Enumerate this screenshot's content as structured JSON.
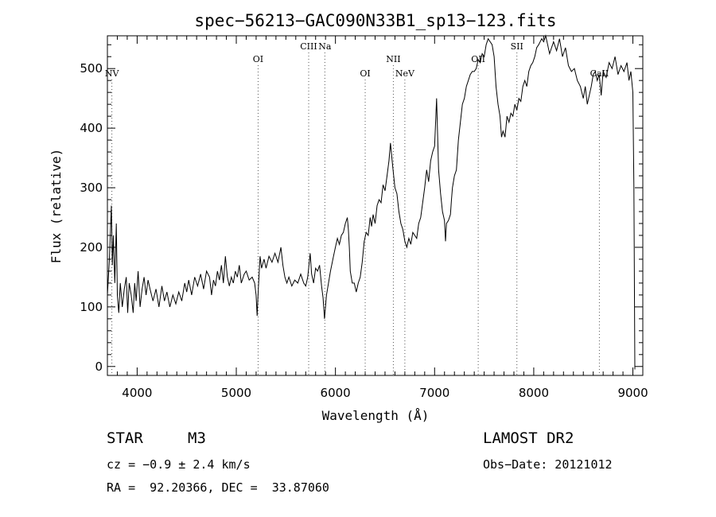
{
  "chart_data": {
    "type": "line",
    "title": "spec−56213−GAC090N33B1_sp13−123.fits",
    "xlabel": "Wavelength (Å)",
    "ylabel": "Flux (relative)",
    "xlim": [
      3700,
      9100
    ],
    "ylim": [
      -15,
      555
    ],
    "xticks": [
      4000,
      5000,
      6000,
      7000,
      8000,
      9000
    ],
    "yticks": [
      0,
      100,
      200,
      300,
      400,
      500
    ],
    "grid": false,
    "line_color": "#000000",
    "series": [
      {
        "values": [
          [
            3700,
            120
          ],
          [
            3720,
            180
          ],
          [
            3740,
            270
          ],
          [
            3750,
            170
          ],
          [
            3760,
            220
          ],
          [
            3775,
            140
          ],
          [
            3790,
            240
          ],
          [
            3800,
            120
          ],
          [
            3815,
            90
          ],
          [
            3830,
            140
          ],
          [
            3850,
            100
          ],
          [
            3870,
            130
          ],
          [
            3890,
            150
          ],
          [
            3905,
            90
          ],
          [
            3920,
            140
          ],
          [
            3940,
            120
          ],
          [
            3960,
            90
          ],
          [
            3975,
            140
          ],
          [
            3990,
            110
          ],
          [
            4010,
            160
          ],
          [
            4030,
            100
          ],
          [
            4050,
            130
          ],
          [
            4070,
            150
          ],
          [
            4090,
            120
          ],
          [
            4110,
            145
          ],
          [
            4130,
            130
          ],
          [
            4160,
            110
          ],
          [
            4190,
            130
          ],
          [
            4220,
            100
          ],
          [
            4250,
            135
          ],
          [
            4275,
            110
          ],
          [
            4300,
            125
          ],
          [
            4330,
            100
          ],
          [
            4360,
            120
          ],
          [
            4390,
            105
          ],
          [
            4420,
            125
          ],
          [
            4450,
            110
          ],
          [
            4480,
            140
          ],
          [
            4500,
            125
          ],
          [
            4520,
            145
          ],
          [
            4550,
            120
          ],
          [
            4580,
            150
          ],
          [
            4610,
            135
          ],
          [
            4640,
            155
          ],
          [
            4670,
            130
          ],
          [
            4700,
            160
          ],
          [
            4730,
            150
          ],
          [
            4750,
            120
          ],
          [
            4770,
            145
          ],
          [
            4790,
            135
          ],
          [
            4810,
            160
          ],
          [
            4830,
            145
          ],
          [
            4850,
            170
          ],
          [
            4870,
            140
          ],
          [
            4890,
            185
          ],
          [
            4910,
            150
          ],
          [
            4930,
            135
          ],
          [
            4950,
            150
          ],
          [
            4970,
            140
          ],
          [
            4990,
            160
          ],
          [
            5010,
            150
          ],
          [
            5030,
            170
          ],
          [
            5050,
            140
          ],
          [
            5080,
            155
          ],
          [
            5100,
            160
          ],
          [
            5130,
            145
          ],
          [
            5160,
            150
          ],
          [
            5185,
            140
          ],
          [
            5200,
            120
          ],
          [
            5210,
            85
          ],
          [
            5222,
            130
          ],
          [
            5240,
            185
          ],
          [
            5255,
            165
          ],
          [
            5280,
            180
          ],
          [
            5300,
            165
          ],
          [
            5330,
            185
          ],
          [
            5360,
            175
          ],
          [
            5390,
            190
          ],
          [
            5420,
            175
          ],
          [
            5450,
            200
          ],
          [
            5470,
            170
          ],
          [
            5490,
            150
          ],
          [
            5510,
            140
          ],
          [
            5530,
            150
          ],
          [
            5560,
            135
          ],
          [
            5590,
            145
          ],
          [
            5620,
            140
          ],
          [
            5650,
            155
          ],
          [
            5680,
            140
          ],
          [
            5700,
            135
          ],
          [
            5720,
            150
          ],
          [
            5745,
            190
          ],
          [
            5760,
            155
          ],
          [
            5780,
            140
          ],
          [
            5800,
            165
          ],
          [
            5820,
            160
          ],
          [
            5840,
            170
          ],
          [
            5860,
            135
          ],
          [
            5875,
            115
          ],
          [
            5890,
            80
          ],
          [
            5910,
            120
          ],
          [
            5930,
            140
          ],
          [
            5950,
            160
          ],
          [
            5980,
            185
          ],
          [
            6000,
            200
          ],
          [
            6020,
            215
          ],
          [
            6040,
            205
          ],
          [
            6060,
            220
          ],
          [
            6080,
            225
          ],
          [
            6100,
            240
          ],
          [
            6120,
            250
          ],
          [
            6130,
            230
          ],
          [
            6140,
            200
          ],
          [
            6150,
            160
          ],
          [
            6170,
            140
          ],
          [
            6190,
            140
          ],
          [
            6210,
            125
          ],
          [
            6230,
            140
          ],
          [
            6250,
            150
          ],
          [
            6270,
            175
          ],
          [
            6290,
            210
          ],
          [
            6310,
            225
          ],
          [
            6330,
            220
          ],
          [
            6350,
            250
          ],
          [
            6365,
            235
          ],
          [
            6380,
            255
          ],
          [
            6400,
            240
          ],
          [
            6420,
            270
          ],
          [
            6440,
            280
          ],
          [
            6460,
            275
          ],
          [
            6480,
            305
          ],
          [
            6500,
            295
          ],
          [
            6520,
            320
          ],
          [
            6540,
            345
          ],
          [
            6555,
            375
          ],
          [
            6575,
            340
          ],
          [
            6600,
            300
          ],
          [
            6620,
            290
          ],
          [
            6640,
            260
          ],
          [
            6660,
            240
          ],
          [
            6680,
            230
          ],
          [
            6700,
            210
          ],
          [
            6720,
            200
          ],
          [
            6740,
            215
          ],
          [
            6760,
            205
          ],
          [
            6780,
            225
          ],
          [
            6800,
            220
          ],
          [
            6820,
            215
          ],
          [
            6840,
            240
          ],
          [
            6860,
            250
          ],
          [
            6880,
            275
          ],
          [
            6900,
            300
          ],
          [
            6920,
            330
          ],
          [
            6940,
            310
          ],
          [
            6960,
            345
          ],
          [
            6980,
            360
          ],
          [
            7000,
            370
          ],
          [
            7020,
            450
          ],
          [
            7040,
            330
          ],
          [
            7060,
            290
          ],
          [
            7080,
            260
          ],
          [
            7100,
            245
          ],
          [
            7110,
            210
          ],
          [
            7120,
            240
          ],
          [
            7140,
            245
          ],
          [
            7160,
            255
          ],
          [
            7170,
            280
          ],
          [
            7180,
            300
          ],
          [
            7200,
            320
          ],
          [
            7220,
            330
          ],
          [
            7240,
            380
          ],
          [
            7260,
            410
          ],
          [
            7280,
            440
          ],
          [
            7300,
            450
          ],
          [
            7320,
            470
          ],
          [
            7340,
            480
          ],
          [
            7360,
            490
          ],
          [
            7380,
            495
          ],
          [
            7400,
            495
          ],
          [
            7420,
            500
          ],
          [
            7440,
            515
          ],
          [
            7460,
            510
          ],
          [
            7480,
            525
          ],
          [
            7500,
            520
          ],
          [
            7520,
            540
          ],
          [
            7540,
            550
          ],
          [
            7560,
            545
          ],
          [
            7580,
            540
          ],
          [
            7600,
            520
          ],
          [
            7620,
            470
          ],
          [
            7640,
            440
          ],
          [
            7660,
            420
          ],
          [
            7675,
            385
          ],
          [
            7690,
            395
          ],
          [
            7710,
            385
          ],
          [
            7730,
            420
          ],
          [
            7750,
            410
          ],
          [
            7770,
            425
          ],
          [
            7790,
            420
          ],
          [
            7810,
            440
          ],
          [
            7830,
            430
          ],
          [
            7850,
            450
          ],
          [
            7870,
            445
          ],
          [
            7890,
            470
          ],
          [
            7910,
            480
          ],
          [
            7930,
            470
          ],
          [
            7950,
            495
          ],
          [
            7970,
            505
          ],
          [
            7990,
            510
          ],
          [
            8010,
            520
          ],
          [
            8030,
            535
          ],
          [
            8050,
            540
          ],
          [
            8080,
            550
          ],
          [
            8100,
            545
          ],
          [
            8120,
            555
          ],
          [
            8140,
            540
          ],
          [
            8160,
            525
          ],
          [
            8180,
            535
          ],
          [
            8200,
            545
          ],
          [
            8230,
            530
          ],
          [
            8260,
            550
          ],
          [
            8290,
            520
          ],
          [
            8320,
            535
          ],
          [
            8350,
            505
          ],
          [
            8380,
            495
          ],
          [
            8410,
            500
          ],
          [
            8440,
            480
          ],
          [
            8470,
            470
          ],
          [
            8500,
            450
          ],
          [
            8520,
            470
          ],
          [
            8540,
            440
          ],
          [
            8560,
            455
          ],
          [
            8580,
            470
          ],
          [
            8600,
            490
          ],
          [
            8620,
            495
          ],
          [
            8640,
            480
          ],
          [
            8660,
            490
          ],
          [
            8680,
            455
          ],
          [
            8700,
            495
          ],
          [
            8730,
            485
          ],
          [
            8760,
            510
          ],
          [
            8790,
            500
          ],
          [
            8820,
            520
          ],
          [
            8850,
            490
          ],
          [
            8880,
            505
          ],
          [
            8910,
            495
          ],
          [
            8940,
            510
          ],
          [
            8960,
            480
          ],
          [
            8980,
            495
          ],
          [
            9000,
            460
          ],
          [
            9010,
            300
          ],
          [
            9020,
            -5
          ]
        ]
      }
    ],
    "line_ids": [
      {
        "name": "NV",
        "x": 3745,
        "row": "low"
      },
      {
        "name": "OI",
        "x": 5220,
        "row": "mid"
      },
      {
        "name": "CIII",
        "x": 5730,
        "row": "high"
      },
      {
        "name": "Na",
        "x": 5893,
        "row": "high"
      },
      {
        "name": "OI",
        "x": 6300,
        "row": "low"
      },
      {
        "name": "NII",
        "x": 6584,
        "row": "mid"
      },
      {
        "name": "NeV",
        "x": 6700,
        "row": "low"
      },
      {
        "name": "OII",
        "x": 7440,
        "row": "mid"
      },
      {
        "name": "SII",
        "x": 7830,
        "row": "high"
      },
      {
        "name": "CaII",
        "x": 8662,
        "row": "low"
      }
    ]
  },
  "info": {
    "class_label": "STAR",
    "subclass": "M3",
    "survey": "LAMOST DR2",
    "cz": "cz = −0.9 ± 2.4 km/s",
    "obs_date": "Obs−Date: 20121012",
    "coords": "RA =  92.20366, DEC =  33.87060"
  }
}
